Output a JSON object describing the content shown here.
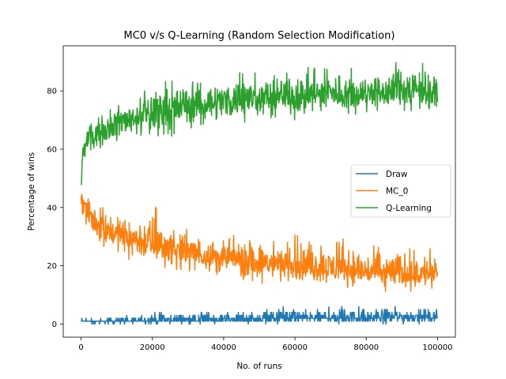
{
  "chart_data": {
    "type": "line",
    "title": "MC0 v/s Q-Learning (Random Selection Modification)",
    "xlabel": "No. of runs",
    "ylabel": "Percentage of wins",
    "xlim": [
      -5000,
      105000
    ],
    "ylim": [
      -4.5,
      95.5
    ],
    "xticks": [
      0,
      20000,
      40000,
      60000,
      80000,
      100000
    ],
    "yticks": [
      0,
      20,
      40,
      60,
      80
    ],
    "grid": false,
    "legend_position": "center-right",
    "series": [
      {
        "name": "Draw",
        "color": "#1f77b4",
        "x": [
          0,
          5000,
          10000,
          15000,
          20000,
          25000,
          30000,
          35000,
          40000,
          45000,
          50000,
          55000,
          60000,
          65000,
          70000,
          75000,
          80000,
          85000,
          90000,
          95000,
          100000
        ],
        "y": [
          1,
          0.8,
          1,
          1,
          1.2,
          1.3,
          1.5,
          1.5,
          1.6,
          1.7,
          1.8,
          1.9,
          2,
          2,
          2.1,
          2.1,
          2.2,
          2.3,
          2.3,
          2.4,
          2.5
        ],
        "min": [
          0,
          0,
          0,
          0,
          0,
          0,
          0,
          0,
          0,
          0,
          0,
          0,
          0,
          0,
          0,
          0,
          0,
          0,
          0,
          0,
          0
        ],
        "max": [
          2,
          2,
          3,
          3,
          5,
          4,
          4,
          5,
          4,
          5,
          5,
          6,
          6,
          5,
          6,
          6,
          6,
          7,
          6,
          6,
          5
        ]
      },
      {
        "name": "MC_0",
        "color": "#ff7f0e",
        "x": [
          0,
          2000,
          5000,
          10000,
          15000,
          20000,
          25000,
          30000,
          35000,
          40000,
          45000,
          50000,
          55000,
          60000,
          65000,
          70000,
          75000,
          80000,
          85000,
          90000,
          95000,
          100000
        ],
        "y": [
          44,
          38,
          34,
          31,
          29,
          27,
          26,
          24.5,
          23.5,
          22.5,
          22,
          21,
          20.5,
          20,
          19.5,
          19,
          18.5,
          18,
          17.5,
          17.5,
          17,
          17
        ],
        "min": [
          36,
          30,
          26,
          24,
          21,
          20,
          19,
          18,
          17,
          15,
          15,
          14,
          13,
          13,
          13,
          12,
          12,
          11,
          11,
          11,
          11,
          11
        ],
        "max": [
          46,
          44,
          41,
          39,
          38,
          42,
          34,
          33,
          32,
          30,
          32,
          30,
          29,
          31,
          28,
          28,
          30,
          27,
          28,
          27,
          27,
          27
        ]
      },
      {
        "name": "Q-Learning",
        "color": "#2ca02c",
        "x": [
          0,
          500,
          2000,
          5000,
          10000,
          15000,
          20000,
          25000,
          30000,
          35000,
          40000,
          45000,
          50000,
          55000,
          60000,
          65000,
          70000,
          75000,
          80000,
          85000,
          90000,
          95000,
          100000
        ],
        "y": [
          46,
          60,
          64,
          66,
          69,
          71,
          72.5,
          74,
          75,
          76,
          76.5,
          77,
          77.5,
          78,
          78.5,
          78.5,
          79,
          79,
          79.5,
          79.5,
          80,
          80,
          80
        ],
        "min": [
          45,
          55,
          58,
          60,
          62,
          63,
          64,
          64,
          66,
          68,
          68,
          69,
          70,
          71,
          70,
          72,
          72,
          71,
          72,
          72,
          73,
          73,
          74
        ],
        "max": [
          50,
          62,
          68,
          72,
          76,
          78,
          82,
          85,
          84,
          85,
          85,
          87,
          86,
          87,
          90,
          88,
          89,
          88,
          88,
          88,
          91,
          91,
          86
        ]
      }
    ]
  }
}
